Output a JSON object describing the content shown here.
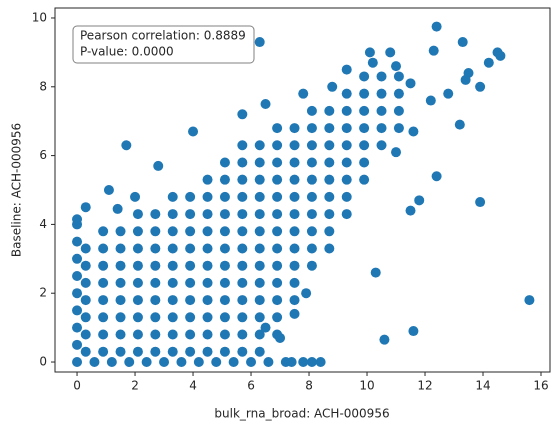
{
  "chart_data": {
    "type": "scatter",
    "xlabel": "bulk_rna_broad: ACH-000956",
    "ylabel": "Baseline: ACH-000956",
    "annotation": [
      "Pearson correlation: 0.8889",
      "P-value: 0.0000"
    ],
    "color": "#1f77b4",
    "xlim": [
      -0.76,
      16.31
    ],
    "ylim": [
      -0.29,
      10.29
    ],
    "xticks": [
      0,
      2,
      4,
      6,
      8,
      10,
      12,
      14,
      16
    ],
    "yticks": [
      0,
      2,
      4,
      6,
      8,
      10
    ],
    "x": [
      0.3,
      0.3,
      0.3,
      0.3,
      0.3,
      0.3,
      0.3,
      0.9,
      0.9,
      0.9,
      0.9,
      0.9,
      0.9,
      0.9,
      0.9,
      1.5,
      1.5,
      1.5,
      1.5,
      1.5,
      1.5,
      1.5,
      1.5,
      2.1,
      2.1,
      2.1,
      2.1,
      2.1,
      2.1,
      2.1,
      2.1,
      2.1,
      2.7,
      2.7,
      2.7,
      2.7,
      2.7,
      2.7,
      2.7,
      2.7,
      2.7,
      3.3,
      3.3,
      3.3,
      3.3,
      3.3,
      3.3,
      3.3,
      3.3,
      3.3,
      3.3,
      3.9,
      3.9,
      3.9,
      3.9,
      3.9,
      3.9,
      3.9,
      3.9,
      3.9,
      3.9,
      4.5,
      4.5,
      4.5,
      4.5,
      4.5,
      4.5,
      4.5,
      4.5,
      4.5,
      4.5,
      4.5,
      5.1,
      5.1,
      5.1,
      5.1,
      5.1,
      5.1,
      5.1,
      5.1,
      5.1,
      5.1,
      5.1,
      5.1,
      5.7,
      5.7,
      5.7,
      5.7,
      5.7,
      5.7,
      5.7,
      5.7,
      5.7,
      5.7,
      5.7,
      5.7,
      5.7,
      6.3,
      6.3,
      6.3,
      6.3,
      6.3,
      6.3,
      6.3,
      6.3,
      6.3,
      6.3,
      6.3,
      6.3,
      6.3,
      6.9,
      6.9,
      6.9,
      6.9,
      6.9,
      6.9,
      6.9,
      6.9,
      6.9,
      6.9,
      6.9,
      6.9,
      6.9,
      7.5,
      7.5,
      7.5,
      7.5,
      7.5,
      7.5,
      7.5,
      7.5,
      7.5,
      7.5,
      7.5,
      8.1,
      8.1,
      8.1,
      8.1,
      8.1,
      8.1,
      8.1,
      8.1,
      8.1,
      8.1,
      8.7,
      8.7,
      8.7,
      8.7,
      8.7,
      8.7,
      8.7,
      8.7,
      8.7,
      9.3,
      9.3,
      9.3,
      9.3,
      9.3,
      9.3,
      9.3,
      9.3,
      9.9,
      9.9,
      9.9,
      9.9,
      9.9,
      9.9,
      9.9,
      10.5,
      10.5,
      10.5,
      10.5,
      10.5,
      11.1,
      11.1,
      11.1,
      11.1,
      0,
      0.6,
      1.2,
      1.8,
      2.4,
      3.0,
      3.6,
      4.2,
      4.8,
      5.4,
      6.0,
      6.6,
      7.2,
      7.8,
      8.4,
      0,
      0,
      0,
      0,
      0,
      0,
      0,
      0,
      6.3,
      12.4,
      13.3,
      12.3,
      14.5,
      14.6,
      14.2,
      13.5,
      13.4,
      10.1,
      11.5,
      12.8,
      12.2,
      13.9,
      13.2,
      11.6,
      11.0,
      12.4,
      11.8,
      11.5,
      13.9,
      15.6,
      10.3,
      10.6,
      11.6,
      7.9,
      7.5,
      6.5,
      8.1,
      7.0,
      7.4,
      5.7,
      4.0,
      1.7,
      2.8,
      1.1,
      2.0,
      0.3,
      0.0,
      1.4,
      6.5,
      7.8,
      9.3,
      8.8,
      10.2,
      11.0,
      10.8
    ],
    "values": [
      0.3,
      0.8,
      1.3,
      1.8,
      2.3,
      2.8,
      3.3,
      0.3,
      0.8,
      1.3,
      1.8,
      2.3,
      2.8,
      3.3,
      3.8,
      0.3,
      0.8,
      1.3,
      1.8,
      2.3,
      2.8,
      3.3,
      3.8,
      0.3,
      0.8,
      1.3,
      1.8,
      2.3,
      2.8,
      3.3,
      3.8,
      4.3,
      0.3,
      0.8,
      1.3,
      1.8,
      2.3,
      2.8,
      3.3,
      3.8,
      4.3,
      0.3,
      0.8,
      1.3,
      1.8,
      2.3,
      2.8,
      3.3,
      3.8,
      4.3,
      4.8,
      0.3,
      0.8,
      1.3,
      1.8,
      2.3,
      2.8,
      3.3,
      3.8,
      4.3,
      4.8,
      0.3,
      0.8,
      1.3,
      1.8,
      2.3,
      2.8,
      3.3,
      3.8,
      4.3,
      4.8,
      5.3,
      0.3,
      0.8,
      1.3,
      1.8,
      2.3,
      2.8,
      3.3,
      3.8,
      4.3,
      4.8,
      5.3,
      5.8,
      0.3,
      0.8,
      1.3,
      1.8,
      2.3,
      2.8,
      3.3,
      3.8,
      4.3,
      4.8,
      5.3,
      5.8,
      6.3,
      0.3,
      0.8,
      1.3,
      1.8,
      2.3,
      2.8,
      3.3,
      3.8,
      4.3,
      4.8,
      5.3,
      5.8,
      6.3,
      0.8,
      1.3,
      1.8,
      2.3,
      2.8,
      3.3,
      3.8,
      4.3,
      4.8,
      5.3,
      5.8,
      6.3,
      6.8,
      1.8,
      2.3,
      2.8,
      3.3,
      3.8,
      4.3,
      4.8,
      5.3,
      5.8,
      6.3,
      6.8,
      2.8,
      3.3,
      3.8,
      4.3,
      4.8,
      5.3,
      5.8,
      6.3,
      6.8,
      7.3,
      3.3,
      3.8,
      4.3,
      4.8,
      5.3,
      5.8,
      6.3,
      6.8,
      7.3,
      4.3,
      4.8,
      5.3,
      5.8,
      6.3,
      6.8,
      7.3,
      7.8,
      5.3,
      5.8,
      6.3,
      6.8,
      7.3,
      7.8,
      8.3,
      6.3,
      6.8,
      7.3,
      7.8,
      8.3,
      6.8,
      7.3,
      7.8,
      8.3,
      0,
      0,
      0,
      0,
      0,
      0,
      0,
      0,
      0,
      0,
      0,
      0,
      0,
      0,
      0,
      0.5,
      1.0,
      1.5,
      2.0,
      2.5,
      3.0,
      3.5,
      4.0,
      9.3,
      9.75,
      9.3,
      9.05,
      9.0,
      8.9,
      8.7,
      8.4,
      8.2,
      9.0,
      8.1,
      7.8,
      7.6,
      8.0,
      6.9,
      6.7,
      6.1,
      5.4,
      4.7,
      4.4,
      4.65,
      1.8,
      2.6,
      0.65,
      0.9,
      2.0,
      1.4,
      1.0,
      0,
      0.7,
      0.0,
      7.2,
      6.7,
      6.3,
      5.7,
      5.0,
      4.8,
      4.5,
      4.15,
      4.45,
      7.5,
      7.8,
      8.5,
      8.0,
      8.7,
      8.6,
      9.0
    ]
  }
}
